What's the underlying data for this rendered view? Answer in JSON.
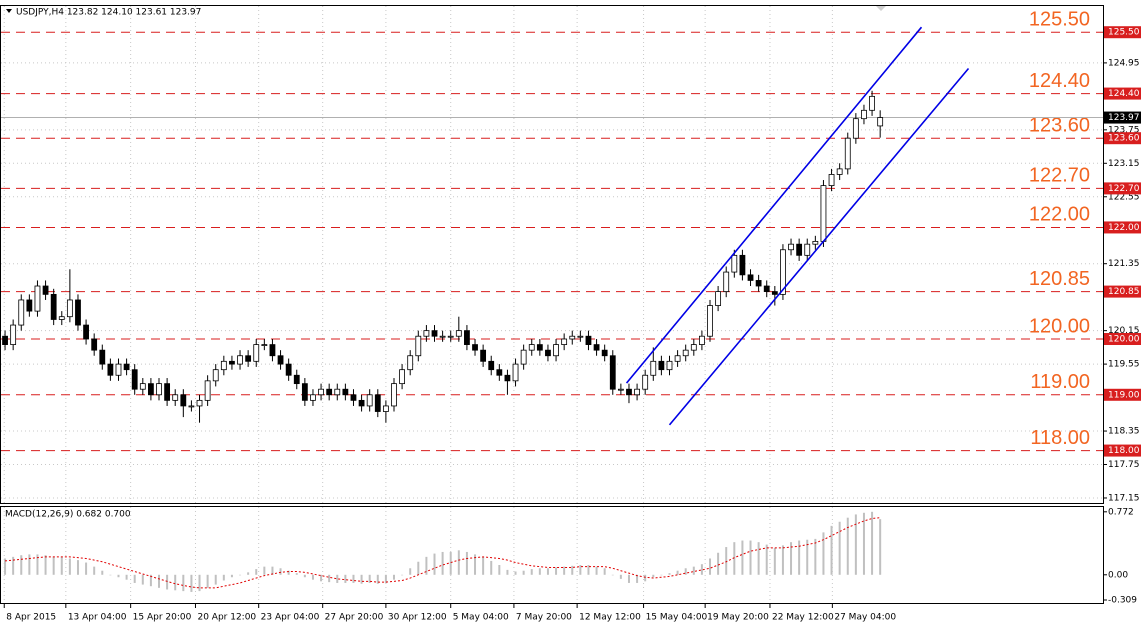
{
  "chart_data": [
    {
      "type": "candlestick",
      "info": "USDJPY,H4 123.82 124.10 123.61 123.97",
      "open": [
        120.05,
        119.9,
        120.25,
        120.7,
        120.5,
        120.95,
        120.8,
        120.35,
        120.4,
        120.7,
        120.25,
        120.0,
        119.8,
        119.55,
        119.35,
        119.55,
        119.45,
        119.1,
        119.2,
        119.0,
        119.2,
        118.9,
        119.0,
        118.8,
        118.8,
        118.9,
        119.25,
        119.45,
        119.6,
        119.55,
        119.7,
        119.6,
        119.9,
        119.9,
        119.7,
        119.55,
        119.35,
        119.2,
        118.9,
        119.0,
        119.1,
        119.0,
        119.1,
        119.0,
        118.9,
        118.8,
        119.0,
        118.7,
        118.8,
        119.2,
        119.45,
        119.7,
        120.05,
        120.15,
        120.05,
        120.05,
        120.05,
        120.15,
        119.9,
        119.8,
        119.6,
        119.45,
        119.35,
        119.25,
        119.55,
        119.8,
        119.9,
        119.8,
        119.7,
        119.9,
        120.0,
        120.05,
        120.05,
        119.9,
        119.8,
        119.7,
        119.1,
        119.1,
        119.0,
        119.1,
        119.35,
        119.6,
        119.45,
        119.6,
        119.7,
        119.8,
        119.9,
        120.05,
        120.6,
        120.85,
        121.2,
        121.5,
        121.15,
        121.05,
        120.95,
        120.85,
        120.8,
        121.6,
        121.7,
        121.5,
        121.7,
        121.75,
        122.75,
        122.95,
        123.05,
        123.6,
        123.95,
        124.1,
        123.82
      ],
      "high": [
        120.15,
        120.35,
        120.8,
        120.8,
        121.05,
        121.05,
        120.9,
        120.5,
        121.25,
        120.8,
        120.35,
        120.1,
        119.9,
        119.65,
        119.65,
        119.65,
        119.55,
        119.3,
        119.3,
        119.3,
        119.3,
        119.1,
        119.1,
        118.9,
        119.0,
        119.35,
        119.55,
        119.7,
        119.7,
        119.8,
        119.8,
        120.0,
        120.0,
        120.0,
        119.8,
        119.65,
        119.45,
        119.3,
        119.1,
        119.2,
        119.2,
        119.2,
        119.2,
        119.1,
        119.0,
        119.1,
        119.1,
        118.9,
        119.3,
        119.55,
        119.8,
        120.15,
        120.25,
        120.25,
        120.15,
        120.15,
        120.4,
        120.25,
        120.0,
        119.9,
        119.7,
        119.55,
        119.45,
        119.65,
        119.9,
        120.0,
        120.0,
        119.9,
        120.0,
        120.1,
        120.15,
        120.15,
        120.15,
        120.0,
        119.9,
        119.8,
        119.2,
        119.2,
        119.2,
        119.45,
        119.85,
        119.7,
        119.7,
        119.8,
        119.9,
        120.0,
        120.15,
        120.7,
        120.95,
        121.3,
        121.6,
        121.6,
        121.25,
        121.15,
        121.05,
        120.95,
        121.7,
        121.8,
        121.8,
        121.8,
        121.85,
        122.85,
        123.05,
        123.15,
        123.7,
        124.05,
        124.2,
        124.45,
        124.1
      ],
      "low": [
        119.8,
        119.8,
        120.15,
        120.4,
        120.4,
        120.7,
        120.25,
        120.25,
        120.3,
        120.15,
        119.9,
        119.7,
        119.45,
        119.25,
        119.25,
        119.35,
        119.0,
        119.0,
        118.9,
        118.9,
        118.8,
        118.8,
        118.6,
        118.7,
        118.5,
        118.8,
        119.15,
        119.35,
        119.45,
        119.45,
        119.5,
        119.5,
        119.8,
        119.6,
        119.45,
        119.25,
        119.1,
        118.8,
        118.8,
        118.9,
        118.9,
        118.9,
        118.9,
        118.8,
        118.7,
        118.7,
        118.6,
        118.5,
        118.7,
        119.1,
        119.35,
        119.6,
        119.95,
        119.95,
        119.95,
        119.95,
        119.95,
        119.8,
        119.7,
        119.5,
        119.35,
        119.25,
        119.0,
        119.15,
        119.45,
        119.7,
        119.7,
        119.6,
        119.6,
        119.8,
        119.9,
        119.95,
        119.8,
        119.7,
        119.6,
        119.0,
        119.0,
        118.85,
        118.9,
        119.0,
        119.25,
        119.35,
        119.35,
        119.5,
        119.6,
        119.7,
        119.8,
        119.95,
        120.5,
        120.75,
        121.1,
        121.05,
        120.95,
        120.85,
        120.75,
        120.6,
        120.7,
        121.5,
        121.4,
        121.4,
        121.6,
        121.65,
        122.65,
        122.85,
        122.95,
        123.5,
        123.85,
        124.0,
        123.61
      ],
      "close": [
        119.9,
        120.25,
        120.7,
        120.5,
        120.95,
        120.8,
        120.35,
        120.4,
        120.7,
        120.25,
        120.0,
        119.8,
        119.55,
        119.35,
        119.55,
        119.45,
        119.1,
        119.2,
        119.0,
        119.2,
        118.9,
        119.0,
        118.8,
        118.8,
        118.9,
        119.25,
        119.45,
        119.6,
        119.55,
        119.7,
        119.6,
        119.9,
        119.9,
        119.7,
        119.55,
        119.35,
        119.2,
        118.9,
        119.0,
        119.1,
        119.0,
        119.1,
        119.0,
        118.9,
        118.8,
        119.0,
        118.7,
        118.8,
        119.2,
        119.45,
        119.7,
        120.05,
        120.15,
        120.05,
        120.05,
        120.05,
        120.15,
        119.9,
        119.8,
        119.6,
        119.45,
        119.35,
        119.25,
        119.55,
        119.8,
        119.9,
        119.8,
        119.7,
        119.9,
        120.0,
        120.05,
        120.05,
        119.9,
        119.8,
        119.7,
        119.1,
        119.1,
        119.0,
        119.1,
        119.35,
        119.6,
        119.45,
        119.6,
        119.7,
        119.8,
        119.9,
        120.05,
        120.6,
        120.85,
        121.2,
        121.5,
        121.15,
        121.05,
        120.95,
        120.85,
        120.8,
        121.6,
        121.7,
        121.5,
        121.7,
        121.75,
        122.75,
        122.95,
        123.05,
        123.6,
        123.95,
        124.1,
        124.35,
        123.97
      ],
      "up_color": "#ffffff",
      "down_color": "#000000",
      "wick_color": "#000000",
      "xlim": [
        0,
        136
      ],
      "xticks": [
        {
          "value": 0.4,
          "label": "8 Apr 2015"
        },
        {
          "value": 8,
          "label": "13 Apr 04:00"
        },
        {
          "value": 16,
          "label": "15 Apr 20:00"
        },
        {
          "value": 24,
          "label": "20 Apr 12:00"
        },
        {
          "value": 31.8,
          "label": "23 Apr 04:00"
        },
        {
          "value": 39.7,
          "label": "27 Apr 20:00"
        },
        {
          "value": 47.5,
          "label": "30 Apr 12:00"
        },
        {
          "value": 55.5,
          "label": "5 May 04:00"
        },
        {
          "value": 63.3,
          "label": "7 May 20:00"
        },
        {
          "value": 71.1,
          "label": "12 May 12:00"
        },
        {
          "value": 79.3,
          "label": "15 May 04:00"
        },
        {
          "value": 86.9,
          "label": "19 May 20:00"
        },
        {
          "value": 94.9,
          "label": "22 May 12:00"
        },
        {
          "value": 102.6,
          "label": "27 May 04:00"
        }
      ],
      "ylim": [
        117.06,
        125.97
      ],
      "yticks": [
        117.15,
        117.75,
        118.35,
        119.55,
        120.15,
        121.35,
        122.55,
        123.15,
        123.75,
        124.95
      ],
      "grid": true,
      "levels": [
        {
          "value": 125.5,
          "label": "125.50"
        },
        {
          "value": 124.4,
          "label": "124.40"
        },
        {
          "value": 123.6,
          "label": "123.60"
        },
        {
          "value": 122.7,
          "label": "122.70"
        },
        {
          "value": 122,
          "label": "122.00"
        },
        {
          "value": 120.85,
          "label": "120.85"
        },
        {
          "value": 120,
          "label": "120.00"
        },
        {
          "value": 119,
          "label": "119.00"
        },
        {
          "value": 118,
          "label": "118.00"
        }
      ],
      "level_color": "#d81e1e",
      "level_label_color": "#f26522",
      "current_price": {
        "value": 123.97,
        "label": "123.97"
      },
      "trendlines": [
        {
          "x": [
            77.2,
            113.6
          ],
          "y": [
            119.21,
            125.59
          ],
          "color": "#0000e6"
        },
        {
          "x": [
            82.5,
            119.4
          ],
          "y": [
            118.46,
            124.85
          ],
          "color": "#0000e6"
        }
      ]
    },
    {
      "type": "macd",
      "info": "MACD(12,26,9) 0.682 0.700",
      "values": [
        0.2,
        0.22,
        0.24,
        0.25,
        0.25,
        0.24,
        0.22,
        0.22,
        0.2,
        0.18,
        0.15,
        0.1,
        0.05,
        0.0,
        -0.03,
        -0.06,
        -0.1,
        -0.12,
        -0.14,
        -0.16,
        -0.18,
        -0.19,
        -0.2,
        -0.21,
        -0.2,
        -0.16,
        -0.12,
        -0.07,
        -0.03,
        0.0,
        0.03,
        0.07,
        0.1,
        0.1,
        0.08,
        0.05,
        0.02,
        -0.03,
        -0.06,
        -0.08,
        -0.09,
        -0.1,
        -0.1,
        -0.1,
        -0.11,
        -0.1,
        -0.11,
        -0.1,
        -0.06,
        0.0,
        0.08,
        0.16,
        0.22,
        0.26,
        0.28,
        0.28,
        0.3,
        0.28,
        0.25,
        0.22,
        0.17,
        0.12,
        0.06,
        0.04,
        0.05,
        0.07,
        0.08,
        0.08,
        0.09,
        0.1,
        0.11,
        0.12,
        0.12,
        0.1,
        0.08,
        0.0,
        -0.05,
        -0.1,
        -0.1,
        -0.08,
        -0.03,
        0.0,
        0.02,
        0.05,
        0.08,
        0.1,
        0.13,
        0.2,
        0.27,
        0.34,
        0.4,
        0.42,
        0.42,
        0.4,
        0.37,
        0.33,
        0.36,
        0.4,
        0.42,
        0.43,
        0.44,
        0.52,
        0.6,
        0.65,
        0.7,
        0.74,
        0.76,
        0.772,
        0.682
      ],
      "signal": [
        0.17,
        0.18,
        0.19,
        0.2,
        0.21,
        0.22,
        0.22,
        0.22,
        0.22,
        0.21,
        0.2,
        0.18,
        0.16,
        0.13,
        0.1,
        0.07,
        0.04,
        0.01,
        -0.02,
        -0.05,
        -0.08,
        -0.11,
        -0.13,
        -0.15,
        -0.16,
        -0.16,
        -0.16,
        -0.14,
        -0.12,
        -0.1,
        -0.07,
        -0.04,
        -0.01,
        0.01,
        0.03,
        0.04,
        0.04,
        0.03,
        0.01,
        -0.01,
        -0.03,
        -0.05,
        -0.06,
        -0.07,
        -0.08,
        -0.08,
        -0.09,
        -0.09,
        -0.08,
        -0.07,
        -0.04,
        0.0,
        0.04,
        0.08,
        0.12,
        0.15,
        0.18,
        0.2,
        0.21,
        0.22,
        0.21,
        0.2,
        0.18,
        0.15,
        0.13,
        0.11,
        0.1,
        0.09,
        0.09,
        0.09,
        0.09,
        0.1,
        0.1,
        0.1,
        0.1,
        0.08,
        0.05,
        0.02,
        -0.01,
        -0.03,
        -0.04,
        -0.03,
        -0.02,
        0.0,
        0.02,
        0.04,
        0.06,
        0.08,
        0.12,
        0.16,
        0.21,
        0.25,
        0.29,
        0.31,
        0.33,
        0.33,
        0.33,
        0.34,
        0.35,
        0.37,
        0.39,
        0.43,
        0.48,
        0.53,
        0.58,
        0.62,
        0.66,
        0.69,
        0.7
      ],
      "color": "#c0c0c0",
      "signal_color": "#e00000",
      "xlim": [
        0,
        136
      ],
      "ylim": [
        -0.309,
        0.831
      ],
      "yticks": [
        0.772,
        {
          "value": 0,
          "label": "0.00"
        },
        -0.309
      ]
    }
  ]
}
